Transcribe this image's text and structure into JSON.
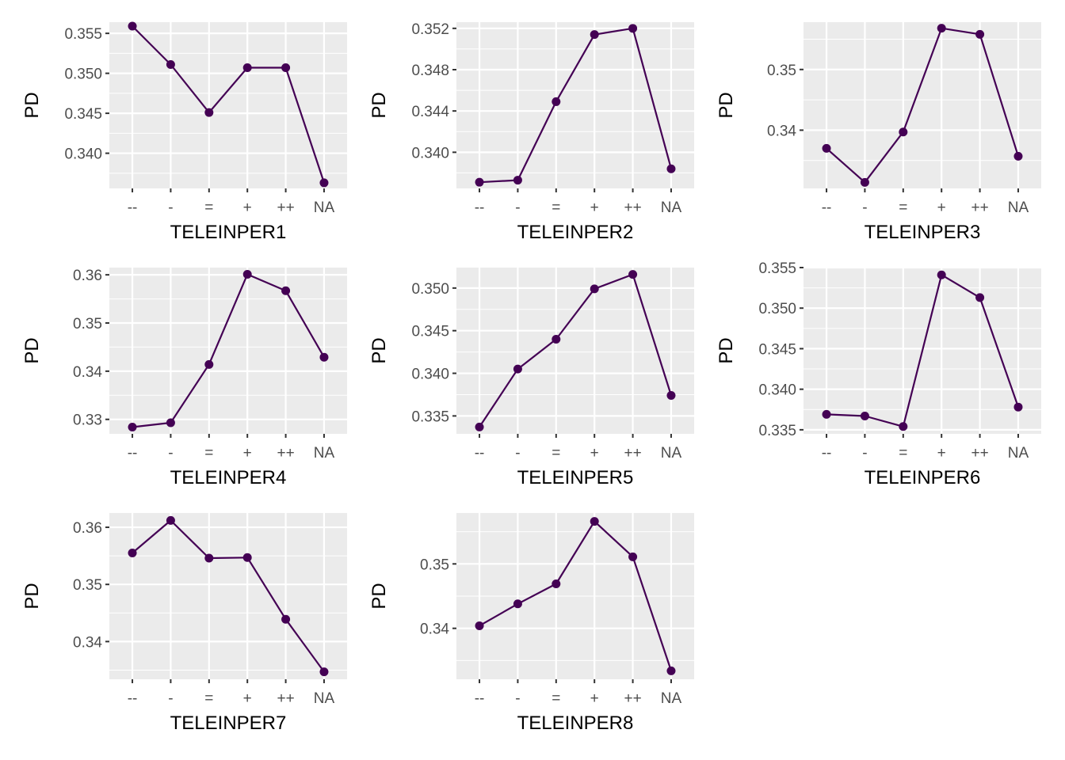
{
  "colors": {
    "panel_bg": "#EBEBEB",
    "grid": "#FFFFFF",
    "series": "#440154",
    "tick": "#333333"
  },
  "chart_data": [
    {
      "type": "line",
      "xlabel": "TELEINPER1",
      "ylabel": "PD",
      "categories": [
        "--",
        "-",
        "=",
        "+",
        "++",
        "NA"
      ],
      "values": [
        0.3559,
        0.3511,
        0.3451,
        0.3507,
        0.3507,
        0.3363
      ],
      "ylim": [
        0.3356,
        0.3564
      ],
      "yticks": [
        0.34,
        0.345,
        0.35,
        0.355
      ],
      "ytick_labels": [
        "0.340",
        "0.345",
        "0.350",
        "0.355"
      ],
      "grid": true
    },
    {
      "type": "line",
      "xlabel": "TELEINPER2",
      "ylabel": "PD",
      "categories": [
        "--",
        "-",
        "=",
        "+",
        "++",
        "NA"
      ],
      "values": [
        0.3371,
        0.3373,
        0.3449,
        0.3514,
        0.352,
        0.3384
      ],
      "ylim": [
        0.3365,
        0.3526
      ],
      "yticks": [
        0.34,
        0.344,
        0.348,
        0.352
      ],
      "ytick_labels": [
        "0.340",
        "0.344",
        "0.348",
        "0.352"
      ],
      "grid": true
    },
    {
      "type": "line",
      "xlabel": "TELEINPER3",
      "ylabel": "PD",
      "categories": [
        "--",
        "-",
        "=",
        "+",
        "++",
        "NA"
      ],
      "values": [
        0.337,
        0.3314,
        0.3397,
        0.3568,
        0.3558,
        0.3357
      ],
      "ylim": [
        0.3304,
        0.3578
      ],
      "yticks": [
        0.34,
        0.35
      ],
      "ytick_labels": [
        "0.34",
        "0.35"
      ],
      "grid": true
    },
    {
      "type": "line",
      "xlabel": "TELEINPER4",
      "ylabel": "PD",
      "categories": [
        "--",
        "-",
        "=",
        "+",
        "++",
        "NA"
      ],
      "values": [
        0.3284,
        0.3293,
        0.3414,
        0.3601,
        0.3567,
        0.3429
      ],
      "ylim": [
        0.327,
        0.3615
      ],
      "yticks": [
        0.33,
        0.34,
        0.35,
        0.36
      ],
      "ytick_labels": [
        "0.33",
        "0.34",
        "0.35",
        "0.36"
      ],
      "grid": true
    },
    {
      "type": "line",
      "xlabel": "TELEINPER5",
      "ylabel": "PD",
      "categories": [
        "--",
        "-",
        "=",
        "+",
        "++",
        "NA"
      ],
      "values": [
        0.3337,
        0.3405,
        0.344,
        0.3499,
        0.3516,
        0.3374
      ],
      "ylim": [
        0.3329,
        0.3524
      ],
      "yticks": [
        0.335,
        0.34,
        0.345,
        0.35
      ],
      "ytick_labels": [
        "0.335",
        "0.340",
        "0.345",
        "0.350"
      ],
      "grid": true
    },
    {
      "type": "line",
      "xlabel": "TELEINPER6",
      "ylabel": "PD",
      "categories": [
        "--",
        "-",
        "=",
        "+",
        "++",
        "NA"
      ],
      "values": [
        0.3369,
        0.3367,
        0.3354,
        0.3541,
        0.3513,
        0.3378
      ],
      "ylim": [
        0.3345,
        0.355
      ],
      "yticks": [
        0.335,
        0.34,
        0.345,
        0.35,
        0.355
      ],
      "ytick_labels": [
        "0.335",
        "0.340",
        "0.345",
        "0.350",
        "0.355"
      ],
      "grid": true
    },
    {
      "type": "line",
      "xlabel": "TELEINPER7",
      "ylabel": "PD",
      "categories": [
        "--",
        "-",
        "=",
        "+",
        "++",
        "NA"
      ],
      "values": [
        0.3555,
        0.3612,
        0.3546,
        0.3547,
        0.3439,
        0.3347
      ],
      "ylim": [
        0.3334,
        0.3625
      ],
      "yticks": [
        0.34,
        0.35,
        0.36
      ],
      "ytick_labels": [
        "0.34",
        "0.35",
        "0.36"
      ],
      "grid": true
    },
    {
      "type": "line",
      "xlabel": "TELEINPER8",
      "ylabel": "PD",
      "categories": [
        "--",
        "-",
        "=",
        "+",
        "++",
        "NA"
      ],
      "values": [
        0.3404,
        0.3438,
        0.3469,
        0.3566,
        0.3511,
        0.3334
      ],
      "ylim": [
        0.3321,
        0.3579
      ],
      "yticks": [
        0.34,
        0.35
      ],
      "ytick_labels": [
        "0.34",
        "0.35"
      ],
      "grid": true
    }
  ]
}
